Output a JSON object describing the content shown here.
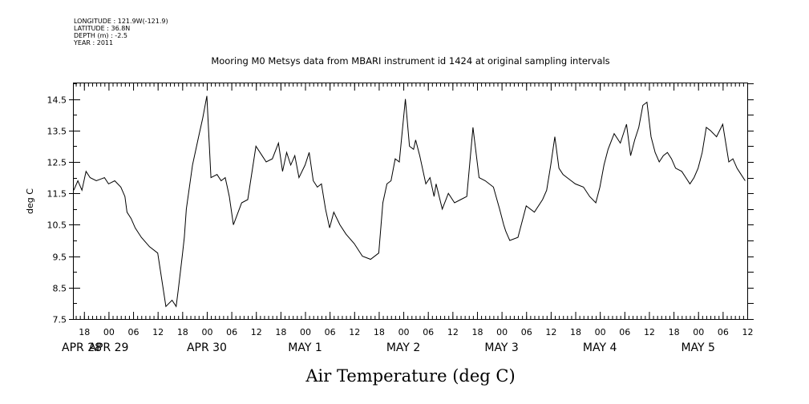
{
  "meta": {
    "longitude": "LONGITUDE : 121.9W(-121.9)",
    "latitude": "LATITUDE : 36.8N",
    "depth": "DEPTH (m) : -2.5",
    "year": "YEAR : 2011"
  },
  "chart_data": {
    "type": "line",
    "title": "Mooring M0 Metsys data from MBARI instrument id 1424 at original sampling intervals",
    "xlabel": "Air Temperature (deg C)",
    "ylabel": "deg C",
    "ylim": [
      7.5,
      15.0
    ],
    "yticks": [
      "7.5",
      "8.5",
      "9.5",
      "10.5",
      "11.5",
      "12.5",
      "13.5",
      "14.5"
    ],
    "xlim_hours": [
      15.5,
      180
    ],
    "hour_ticks": [
      "18",
      "00",
      "06",
      "12",
      "18",
      "00",
      "06",
      "12",
      "18",
      "00",
      "06",
      "12",
      "18",
      "00",
      "06",
      "12",
      "18",
      "00",
      "06",
      "12",
      "18",
      "00",
      "06",
      "12",
      "18",
      "00",
      "06",
      "12"
    ],
    "date_labels": [
      "APR 28",
      "APR 29",
      "APR 30",
      "MAY  1",
      "MAY  2",
      "MAY  3",
      "MAY  4",
      "MAY  5"
    ],
    "x_hours": [
      15.5,
      16.5,
      17.5,
      18.5,
      19.5,
      21,
      23,
      24,
      25.5,
      27,
      28,
      28.5,
      29.5,
      30.5,
      32,
      34,
      36,
      38,
      39.5,
      40.5,
      41,
      42,
      42.5,
      43,
      44.5,
      46,
      47,
      48,
      49,
      50.5,
      51.5,
      52.5,
      53,
      53.5,
      54.5,
      56.5,
      58,
      60,
      61.5,
      62.5,
      64,
      65.5,
      66.5,
      67.5,
      68.5,
      69.5,
      70.5,
      72,
      73,
      74,
      75,
      76,
      77,
      78,
      79,
      80.5,
      82,
      84,
      86,
      88,
      90,
      91,
      92,
      93,
      94,
      95,
      96.5,
      97.5,
      98.5,
      99,
      100,
      101.5,
      102.5,
      103.5,
      104,
      105.5,
      107,
      108.5,
      110,
      111.5,
      113,
      114.5,
      116,
      118,
      119.5,
      120.5,
      121,
      122,
      124,
      126,
      128,
      130,
      131,
      132,
      133,
      134,
      135,
      136,
      137,
      138,
      140,
      141.5,
      143,
      144,
      145,
      146,
      147.5,
      149,
      150.5,
      151.5,
      152.5,
      153.5,
      154.5,
      155.5,
      156.5,
      157.5,
      158.5,
      159.5,
      160.5,
      161.5,
      162.5,
      164,
      165,
      166,
      167,
      168,
      169,
      170,
      171,
      172.5,
      174,
      175.5,
      176.5,
      177.5,
      178.5,
      179.5
    ],
    "y_values": [
      11.6,
      11.9,
      11.6,
      12.2,
      12.0,
      11.9,
      12.0,
      11.8,
      11.9,
      11.7,
      11.4,
      10.9,
      10.7,
      10.4,
      10.1,
      9.8,
      9.6,
      7.9,
      8.1,
      7.9,
      8.4,
      9.5,
      10.1,
      11.0,
      12.4,
      13.3,
      13.9,
      14.6,
      12.0,
      12.1,
      11.9,
      12.0,
      11.7,
      11.4,
      10.5,
      11.2,
      11.3,
      13.0,
      12.7,
      12.5,
      12.6,
      13.1,
      12.2,
      12.8,
      12.4,
      12.7,
      12.0,
      12.4,
      12.8,
      11.9,
      11.7,
      11.8,
      11.0,
      10.4,
      10.9,
      10.5,
      10.2,
      9.9,
      9.5,
      9.4,
      9.6,
      11.2,
      11.8,
      11.9,
      12.6,
      12.5,
      14.5,
      13.0,
      12.9,
      13.2,
      12.7,
      11.8,
      12.0,
      11.4,
      11.8,
      11.0,
      11.5,
      11.2,
      11.3,
      11.4,
      13.6,
      12.0,
      11.9,
      11.7,
      11.0,
      10.5,
      10.3,
      10.0,
      10.1,
      11.1,
      10.9,
      11.3,
      11.6,
      12.4,
      13.3,
      12.3,
      12.1,
      12.0,
      11.9,
      11.8,
      11.7,
      11.4,
      11.2,
      11.7,
      12.4,
      12.9,
      13.4,
      13.1,
      13.7,
      12.7,
      13.2,
      13.6,
      14.3,
      14.4,
      13.3,
      12.8,
      12.5,
      12.7,
      12.8,
      12.6,
      12.3,
      12.2,
      12.0,
      11.8,
      12.0,
      12.3,
      12.8,
      13.6,
      13.5,
      13.3,
      13.7,
      12.5,
      12.6,
      12.3,
      12.1,
      11.9
    ]
  }
}
